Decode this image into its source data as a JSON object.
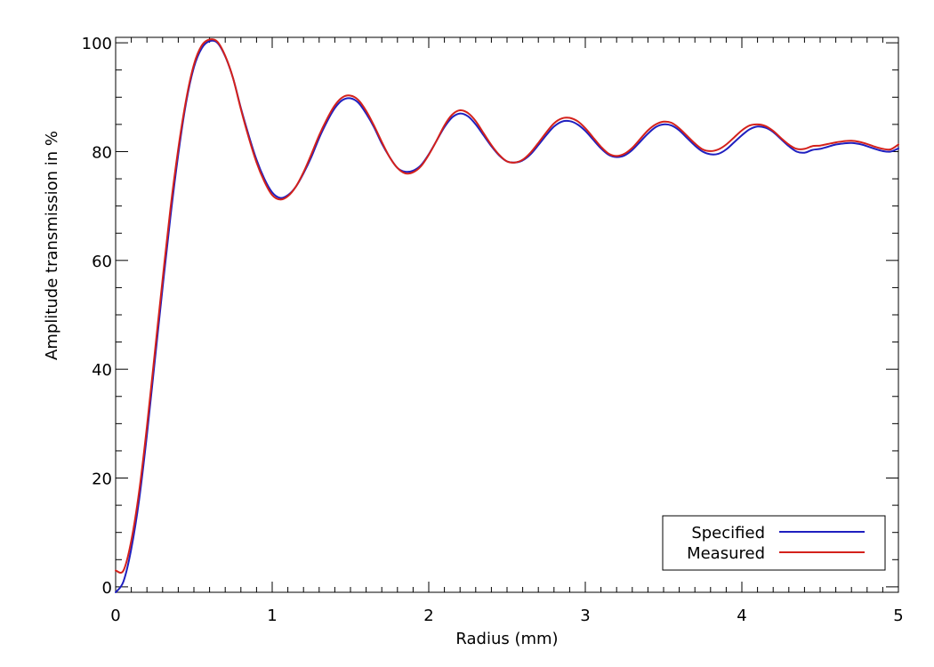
{
  "chart_data": {
    "type": "line",
    "xlabel": "Radius (mm)",
    "ylabel": "Amplitude transmission in %",
    "xlim": [
      0,
      5
    ],
    "ylim": [
      -1,
      101
    ],
    "xticks": [
      0,
      1,
      2,
      3,
      4,
      5
    ],
    "xtick_labels": [
      "0",
      "1",
      "2",
      "3",
      "4",
      "5"
    ],
    "yticks": [
      0,
      20,
      40,
      60,
      80,
      100
    ],
    "ytick_labels": [
      "0",
      "20",
      "40",
      "60",
      "80",
      "100"
    ],
    "grid": false,
    "legend_position": "bottom-right",
    "series": [
      {
        "name": "Specified",
        "color": "#1f1fbf",
        "x": [
          0,
          0.05,
          0.1,
          0.15,
          0.2,
          0.25,
          0.3,
          0.35,
          0.4,
          0.45,
          0.5,
          0.55,
          0.6,
          0.65,
          0.7,
          0.75,
          0.8,
          0.85,
          0.9,
          0.95,
          1.0,
          1.05,
          1.1,
          1.15,
          1.2,
          1.25,
          1.3,
          1.35,
          1.4,
          1.45,
          1.5,
          1.55,
          1.6,
          1.65,
          1.7,
          1.75,
          1.8,
          1.85,
          1.9,
          1.95,
          2.0,
          2.05,
          2.1,
          2.15,
          2.2,
          2.25,
          2.3,
          2.35,
          2.4,
          2.45,
          2.5,
          2.55,
          2.6,
          2.65,
          2.7,
          2.75,
          2.8,
          2.85,
          2.9,
          2.95,
          3.0,
          3.05,
          3.1,
          3.15,
          3.2,
          3.25,
          3.3,
          3.35,
          3.4,
          3.45,
          3.5,
          3.55,
          3.6,
          3.65,
          3.7,
          3.75,
          3.8,
          3.85,
          3.9,
          3.95,
          4.0,
          4.05,
          4.1,
          4.15,
          4.2,
          4.25,
          4.3,
          4.35,
          4.4,
          4.45,
          4.5,
          4.55,
          4.6,
          4.65,
          4.7,
          4.75,
          4.8,
          4.85,
          4.9,
          4.95,
          5.0
        ],
        "y": [
          -1.0,
          1.0,
          7.0,
          16.0,
          28.0,
          41.5,
          55.0,
          68.0,
          79.5,
          89.0,
          95.5,
          99.0,
          100.3,
          100.0,
          97.5,
          93.5,
          88.0,
          83.0,
          78.5,
          75.0,
          72.5,
          71.5,
          72.0,
          73.5,
          76.0,
          79.0,
          82.5,
          85.5,
          88.0,
          89.5,
          89.8,
          89.0,
          87.0,
          84.5,
          81.5,
          79.0,
          77.0,
          76.3,
          76.5,
          77.5,
          79.5,
          82.0,
          84.5,
          86.3,
          87.0,
          86.5,
          85.0,
          83.0,
          81.0,
          79.3,
          78.2,
          78.0,
          78.4,
          79.5,
          81.2,
          83.0,
          84.6,
          85.5,
          85.6,
          85.0,
          83.8,
          82.2,
          80.6,
          79.4,
          79.0,
          79.3,
          80.3,
          81.8,
          83.3,
          84.5,
          85.0,
          84.8,
          83.9,
          82.5,
          81.1,
          80.0,
          79.5,
          79.6,
          80.4,
          81.7,
          83.0,
          84.1,
          84.6,
          84.4,
          83.6,
          82.3,
          81.0,
          80.0,
          79.8,
          80.3,
          80.5,
          80.9,
          81.3,
          81.5,
          81.6,
          81.4,
          81.0,
          80.5,
          80.1,
          80.0,
          80.6
        ]
      },
      {
        "name": "Measured",
        "color": "#d4211b",
        "x": [
          0,
          0.05,
          0.1,
          0.15,
          0.2,
          0.25,
          0.3,
          0.35,
          0.4,
          0.45,
          0.5,
          0.55,
          0.6,
          0.65,
          0.7,
          0.75,
          0.8,
          0.85,
          0.9,
          0.95,
          1.0,
          1.05,
          1.1,
          1.15,
          1.2,
          1.25,
          1.3,
          1.35,
          1.4,
          1.45,
          1.5,
          1.55,
          1.6,
          1.65,
          1.7,
          1.75,
          1.8,
          1.85,
          1.9,
          1.95,
          2.0,
          2.05,
          2.1,
          2.15,
          2.2,
          2.25,
          2.3,
          2.35,
          2.4,
          2.45,
          2.5,
          2.55,
          2.6,
          2.65,
          2.7,
          2.75,
          2.8,
          2.85,
          2.9,
          2.95,
          3.0,
          3.05,
          3.1,
          3.15,
          3.2,
          3.25,
          3.3,
          3.35,
          3.4,
          3.45,
          3.5,
          3.55,
          3.6,
          3.65,
          3.7,
          3.75,
          3.8,
          3.85,
          3.9,
          3.95,
          4.0,
          4.05,
          4.1,
          4.15,
          4.2,
          4.25,
          4.3,
          4.35,
          4.4,
          4.45,
          4.5,
          4.55,
          4.6,
          4.65,
          4.7,
          4.75,
          4.8,
          4.85,
          4.9,
          4.95,
          5.0
        ],
        "y": [
          3.0,
          3.0,
          8.5,
          17.5,
          29.5,
          43.0,
          56.5,
          69.5,
          80.5,
          89.5,
          96.0,
          99.5,
          100.6,
          100.2,
          97.6,
          93.5,
          87.8,
          82.6,
          78.0,
          74.5,
          72.0,
          71.2,
          71.8,
          73.5,
          76.2,
          79.5,
          83.0,
          86.0,
          88.5,
          90.0,
          90.3,
          89.5,
          87.5,
          84.8,
          81.8,
          79.0,
          77.0,
          76.0,
          76.2,
          77.3,
          79.4,
          82.0,
          84.8,
          86.8,
          87.6,
          87.1,
          85.6,
          83.4,
          81.2,
          79.4,
          78.2,
          78.0,
          78.5,
          79.8,
          81.6,
          83.5,
          85.2,
          86.1,
          86.2,
          85.6,
          84.3,
          82.6,
          80.9,
          79.6,
          79.2,
          79.6,
          80.7,
          82.3,
          83.9,
          85.0,
          85.5,
          85.3,
          84.3,
          82.9,
          81.5,
          80.4,
          80.1,
          80.4,
          81.3,
          82.6,
          83.9,
          84.8,
          85.0,
          84.7,
          83.8,
          82.5,
          81.3,
          80.5,
          80.5,
          81.0,
          81.1,
          81.4,
          81.7,
          81.9,
          82.0,
          81.8,
          81.4,
          80.9,
          80.5,
          80.4,
          81.3
        ]
      }
    ]
  }
}
